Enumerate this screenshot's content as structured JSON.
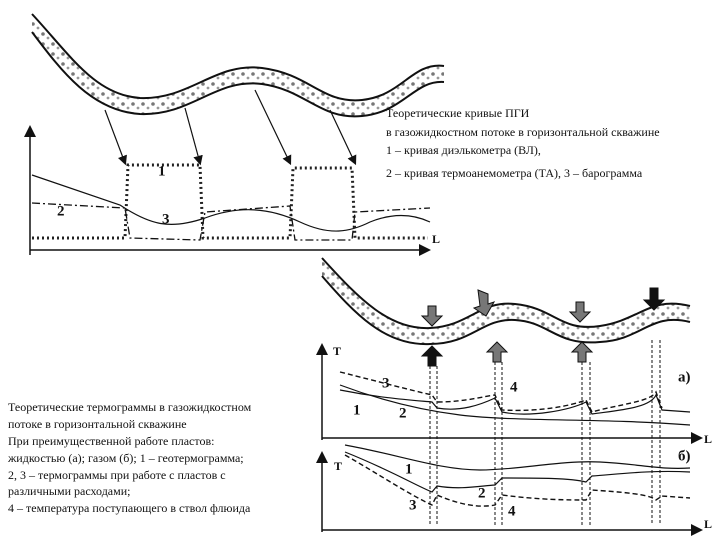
{
  "top_diagram": {
    "caption": [
      "Теоретические кривые  ПГИ",
      "в газожидкостном потоке в горизонтальной скважине",
      "1 – кривая диэлькометра (ВЛ),",
      "2 – кривая термоанемометра (ТА), 3 – барограмма"
    ],
    "curve_labels": [
      "1",
      "2",
      "3"
    ],
    "axis_label": "L"
  },
  "bottom_diagram": {
    "caption": [
      "Теоретические термограммы в  газожидкостном",
      "потоке в горизонтальной скважине",
      "При преимущественной работе пластов:",
      "жидкостью (а); газом (б); 1 – геотермограмма;",
      "2, 3 – термограммы при работе с пластов с",
      "различными расходами;",
      "4 – температура поступающего в ствол флюида"
    ],
    "panel_a": {
      "label": "а)",
      "axis_labels": [
        "T",
        "L"
      ],
      "curve_labels": [
        "3",
        "4",
        "1",
        "2"
      ]
    },
    "panel_b": {
      "label": "б)",
      "axis_labels": [
        "T",
        "L"
      ],
      "curve_labels": [
        "1",
        "2",
        "3",
        "4"
      ]
    }
  }
}
